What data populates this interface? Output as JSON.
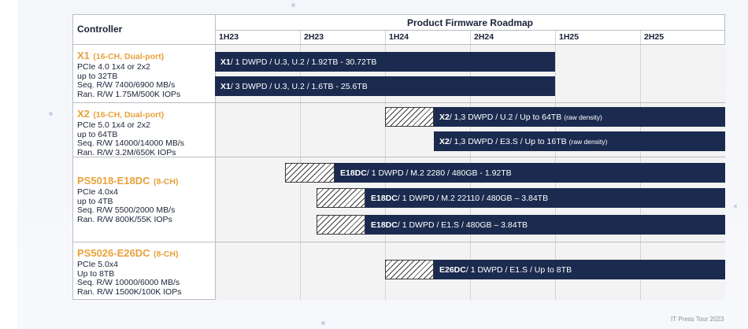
{
  "header": {
    "controller_label": "Controller",
    "roadmap_title": "Product Firmware Roadmap",
    "periods": [
      "1H23",
      "2H23",
      "1H24",
      "2H24",
      "1H25",
      "2H25"
    ]
  },
  "controllers": [
    {
      "name": "X1",
      "tag": "(16-CH, Dual-port)",
      "specs": [
        "PCIe 4.0 1x4 or 2x2",
        "up to 32TB",
        "Seq. R/W 7400/6900  MB/s",
        "Ran. R/W 1.75M/500K IOPs"
      ],
      "bars": [
        {
          "name": "X1",
          "desc": " / 1 DWPD / U.3, U.2 / 1.92TB - 30.72TB",
          "note": "",
          "start_period": "1H23",
          "planned_from": "1H23",
          "end_period": "1H25"
        },
        {
          "name": "X1",
          "desc": " / 3 DWPD / U.3, U.2 / 1.6TB - 25.6TB",
          "note": "",
          "start_period": "1H23",
          "planned_from": "1H23",
          "end_period": "1H25"
        }
      ]
    },
    {
      "name": "X2",
      "tag": "(16-CH, Dual-port)",
      "specs": [
        "PCIe 5.0 1x4 or 2x2",
        "up to 64TB",
        "Seq. R/W 14000/14000 MB/s",
        "Ran. R/W 3.2M/650K IOPs"
      ],
      "bars": [
        {
          "name": "X2",
          "desc": " / 1,3 DWPD / U.2 / Up to 64TB",
          "note": "(raw density)",
          "start_period": "1H24",
          "planned_from": "2H24"
        },
        {
          "name": "X2",
          "desc": " / 1,3 DWPD / E3.S / Up to 16TB",
          "note": "(raw density)",
          "start_period": "2H24",
          "planned_from": "2H24"
        }
      ]
    },
    {
      "name": "PS5018-E18DC",
      "tag": "(8-CH)",
      "specs": [
        "PCIe 4.0x4",
        "up to 4TB",
        "Seq. R/W 5500/2000 MB/s",
        "Ran. R/W 800K/55K IOPs"
      ],
      "bars": [
        {
          "name": "E18DC",
          "desc": " / 1 DWPD / M.2 2280 / 480GB - 1.92TB",
          "note": "",
          "start_period": "2H23",
          "planned_from": "2H23"
        },
        {
          "name": "E18DC",
          "desc": " / 1 DWPD / M.2 22110 / 480GB – 3.84TB",
          "note": "",
          "start_period": "2H23",
          "planned_from": "1H24"
        },
        {
          "name": "E18DC",
          "desc": " / 1 DWPD / E1.S / 480GB – 3.84TB",
          "note": "",
          "start_period": "2H23",
          "planned_from": "1H24"
        }
      ]
    },
    {
      "name": "PS5026-E26DC",
      "tag": "(8-CH)",
      "specs": [
        "PCIe 5.0x4",
        "Up to 8TB",
        "Seq. R/W 10000/6000  MB/s",
        "Ran. R/W 1500K/100K IOPs"
      ],
      "bars": [
        {
          "name": "E26DC",
          "desc": " / 1 DWPD / E1.S / Up to 8TB",
          "note": "",
          "start_period": "1H24",
          "planned_from": "2H24"
        }
      ]
    }
  ],
  "credit": "IT Press Tour 2023",
  "colors": {
    "bar": "#1b2b4f",
    "controller_name": "#e8a13a",
    "header_text": "#1a2238"
  }
}
